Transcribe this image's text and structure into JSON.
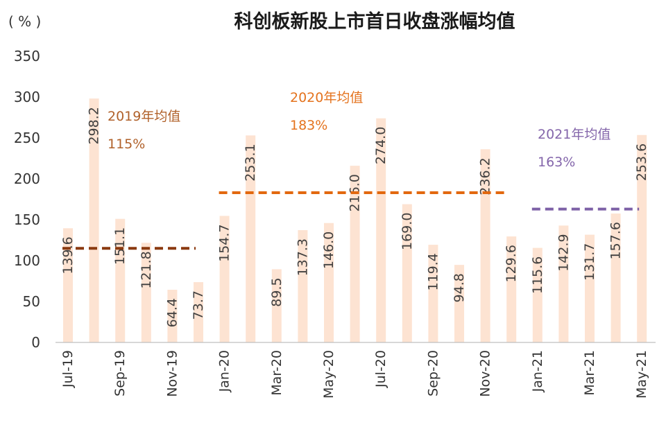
{
  "chart_data": {
    "type": "bar",
    "title": "科创板新股上市首日收盘涨幅均值",
    "ylabel": "( % )",
    "xlabel": "",
    "categories": [
      "Jul-19",
      "Aug-19",
      "Sep-19",
      "Oct-19",
      "Nov-19",
      "Dec-19",
      "Jan-20",
      "Feb-20",
      "Mar-20",
      "Apr-20",
      "May-20",
      "Jun-20",
      "Jul-20",
      "Aug-20",
      "Sep-20",
      "Oct-20",
      "Nov-20",
      "Dec-20",
      "Jan-21",
      "Feb-21",
      "Mar-21",
      "Apr-21",
      "May-21"
    ],
    "values": [
      139.6,
      298.2,
      151.1,
      121.8,
      64.4,
      73.7,
      154.7,
      253.1,
      89.5,
      137.3,
      146.0,
      216.0,
      274.0,
      169.0,
      119.4,
      94.8,
      236.2,
      129.6,
      115.6,
      142.9,
      131.7,
      157.6,
      253.6
    ],
    "x_tick_labels": [
      "Jul-19",
      "Sep-19",
      "Nov-19",
      "Jan-20",
      "Mar-20",
      "May-20",
      "Jul-20",
      "Sep-20",
      "Nov-20",
      "Jan-21",
      "Mar-21",
      "May-21"
    ],
    "yticks": [
      0,
      50,
      100,
      150,
      200,
      250,
      300,
      350
    ],
    "ylim": [
      0,
      350
    ],
    "grid": false,
    "bar_color": "#fde3d2",
    "averages": [
      {
        "label": "2019年均值",
        "value_label": "115%",
        "value": 115,
        "start": "Jul-19",
        "end": "Dec-19",
        "line_color": "#8b3a10",
        "text_color": "#b0612a"
      },
      {
        "label": "2020年均值",
        "value_label": "183%",
        "value": 183,
        "start": "Jan-20",
        "end": "Dec-20",
        "line_color": "#e2680f",
        "text_color": "#e4731e"
      },
      {
        "label": "2021年均值",
        "value_label": "163%",
        "value": 163,
        "start": "Jan-21",
        "end": "May-21",
        "line_color": "#7d61a6",
        "text_color": "#8466ab"
      }
    ]
  }
}
